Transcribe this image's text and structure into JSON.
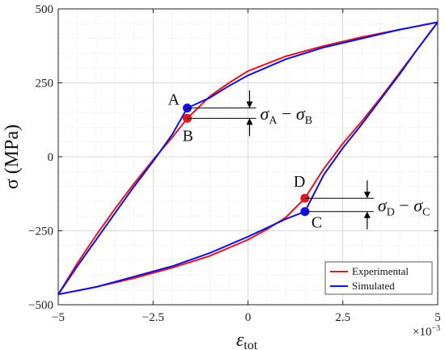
{
  "chart_data": {
    "type": "line",
    "xlabel": "ε",
    "xlabel_sub": "tot",
    "ylabel": "σ (MPa)",
    "x_exponent_base": "×10",
    "x_exponent_power": "−3",
    "xlim": [
      -5,
      5
    ],
    "ylim": [
      -500,
      500
    ],
    "x_ticks": [
      -5,
      -2.5,
      0,
      2.5,
      5
    ],
    "x_tick_labels": [
      "−5",
      "−2.5",
      "0",
      "2.5",
      "5"
    ],
    "y_ticks": [
      -500,
      -250,
      0,
      250,
      500
    ],
    "y_tick_labels": [
      "−500",
      "−250",
      "0",
      "250",
      "500"
    ],
    "grid": true,
    "legend_position": "bottom-right",
    "series": [
      {
        "name": "Experimental",
        "color": "#e8141b",
        "upper_branch": [
          [
            -5,
            -465
          ],
          [
            -4.5,
            -360
          ],
          [
            -4,
            -265
          ],
          [
            -3.5,
            -175
          ],
          [
            -3,
            -90
          ],
          [
            -2.5,
            -10
          ],
          [
            -2,
            65
          ],
          [
            -1.6,
            130
          ],
          [
            -1,
            205
          ],
          [
            -0.5,
            250
          ],
          [
            0,
            290
          ],
          [
            1,
            340
          ],
          [
            2,
            375
          ],
          [
            3,
            405
          ],
          [
            4,
            430
          ],
          [
            5,
            455
          ]
        ],
        "lower_branch": [
          [
            5,
            455
          ],
          [
            4.5,
            370
          ],
          [
            4,
            285
          ],
          [
            3.5,
            200
          ],
          [
            3,
            120
          ],
          [
            2.5,
            45
          ],
          [
            2,
            -40
          ],
          [
            1.5,
            -140
          ],
          [
            1,
            -205
          ],
          [
            0.5,
            -245
          ],
          [
            0,
            -280
          ],
          [
            -1,
            -335
          ],
          [
            -2,
            -375
          ],
          [
            -3,
            -410
          ],
          [
            -4,
            -440
          ],
          [
            -5,
            -465
          ]
        ]
      },
      {
        "name": "Simulated",
        "color": "#1010e6",
        "upper_branch": [
          [
            -5,
            -465
          ],
          [
            -4.5,
            -370
          ],
          [
            -4,
            -280
          ],
          [
            -3.5,
            -190
          ],
          [
            -3,
            -100
          ],
          [
            -2.5,
            -15
          ],
          [
            -2,
            75
          ],
          [
            -1.6,
            165
          ],
          [
            -1,
            200
          ],
          [
            -0.5,
            240
          ],
          [
            0,
            275
          ],
          [
            1,
            330
          ],
          [
            2,
            370
          ],
          [
            3,
            400
          ],
          [
            4,
            430
          ],
          [
            5,
            455
          ]
        ],
        "lower_branch": [
          [
            5,
            455
          ],
          [
            4.5,
            370
          ],
          [
            4,
            280
          ],
          [
            3.5,
            195
          ],
          [
            3,
            110
          ],
          [
            2.5,
            30
          ],
          [
            2,
            -60
          ],
          [
            1.5,
            -185
          ],
          [
            1,
            -210
          ],
          [
            0.5,
            -240
          ],
          [
            0,
            -270
          ],
          [
            -1,
            -325
          ],
          [
            -2,
            -370
          ],
          [
            -3,
            -405
          ],
          [
            -4,
            -440
          ],
          [
            -5,
            -465
          ]
        ]
      }
    ],
    "points": [
      {
        "label": "A",
        "x": -1.6,
        "y": 165,
        "color": "#1010e6"
      },
      {
        "label": "B",
        "x": -1.6,
        "y": 130,
        "color": "#e8141b"
      },
      {
        "label": "D",
        "x": 1.5,
        "y": -140,
        "color": "#e8141b"
      },
      {
        "label": "C",
        "x": 1.5,
        "y": -185,
        "color": "#1010e6"
      }
    ],
    "annotations": [
      {
        "top": "A",
        "bottom": "B",
        "text_main": "σ",
        "sub1": "A",
        "minus": " − σ",
        "sub2": "B"
      },
      {
        "top": "D",
        "bottom": "C",
        "text_main": "σ",
        "sub1": "D",
        "minus": " − σ",
        "sub2": "C"
      }
    ]
  }
}
